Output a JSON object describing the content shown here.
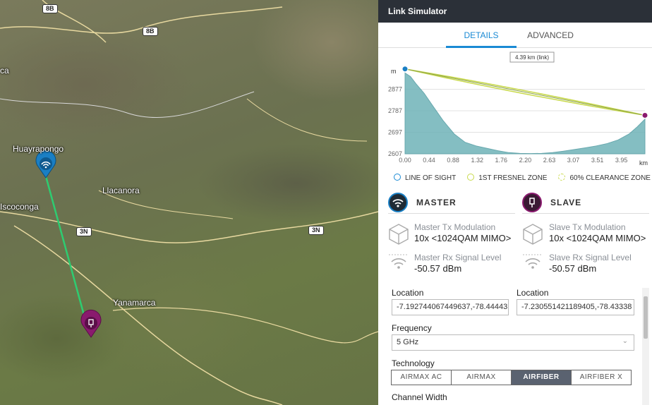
{
  "map": {
    "places": [
      "Huayrapongo",
      "Llacanora",
      "Yanamarca",
      "Iscoconga",
      "ca"
    ],
    "road_shields": [
      "8B",
      "8B",
      "3N",
      "3N"
    ],
    "link_color": "#2ecc71",
    "master_pin_color": "#1a7fc4",
    "slave_pin_color": "#8a1a6e"
  },
  "panel": {
    "title": "Link Simulator",
    "tabs": [
      "DETAILS",
      "ADVANCED"
    ],
    "active_tab": "DETAILS"
  },
  "chart_data": {
    "type": "area",
    "title": "",
    "distance_label": "4.39 km (link)",
    "ylabel": "m",
    "xlabel": "km",
    "yticks": [
      2877,
      2787,
      2697,
      2607
    ],
    "xticks": [
      "0.00",
      "0.44",
      "0.88",
      "1.32",
      "1.76",
      "2.20",
      "2.63",
      "3.07",
      "3.51",
      "3.95"
    ],
    "ylim": [
      2607,
      2967
    ],
    "xlim": [
      0,
      4.39
    ],
    "terrain": {
      "x": [
        0,
        0.1,
        0.2,
        0.35,
        0.5,
        0.7,
        0.9,
        1.1,
        1.3,
        1.5,
        1.7,
        1.9,
        2.1,
        2.3,
        2.5,
        2.7,
        2.9,
        3.1,
        3.3,
        3.5,
        3.7,
        3.9,
        4.1,
        4.25,
        4.39
      ],
      "y": [
        2945,
        2930,
        2900,
        2860,
        2810,
        2745,
        2690,
        2655,
        2640,
        2630,
        2620,
        2612,
        2609,
        2608,
        2609,
        2612,
        2618,
        2625,
        2632,
        2640,
        2650,
        2665,
        2690,
        2720,
        2752
      ]
    },
    "line_of_sight": {
      "x": [
        0,
        4.39
      ],
      "y": [
        2962,
        2768
      ]
    },
    "master_point": {
      "x": 0,
      "y": 2962
    },
    "slave_point": {
      "x": 4.39,
      "y": 2768
    },
    "colors": {
      "terrain": "#6fb3b8",
      "los": "#1a8ad4",
      "fresnel": "#c8d94a",
      "master": "#1a7fc4",
      "slave": "#8a1a6e"
    },
    "legend": [
      "LINE OF SIGHT",
      "1ST FRESNEL ZONE",
      "60% CLEARANCE ZONE"
    ]
  },
  "master": {
    "name": "MASTER",
    "tx_label": "Master Tx Modulation",
    "tx_value": "10x <1024QAM MIMO>",
    "rx_label": "Master Rx Signal Level",
    "rx_value": "-50.57 dBm"
  },
  "slave": {
    "name": "SLAVE",
    "tx_label": "Slave Tx Modulation",
    "tx_value": "10x <1024QAM MIMO>",
    "rx_label": "Slave Rx Signal Level",
    "rx_value": "-50.57 dBm"
  },
  "form": {
    "location_label": "Location",
    "master_location": "-7.192744067449637,-78.44443",
    "slave_location": "-7.230551421189405,-78.43338",
    "frequency_label": "Frequency",
    "frequency_value": "5 GHz",
    "technology_label": "Technology",
    "technology_options": [
      "AIRMAX AC",
      "AIRMAX",
      "AIRFIBER",
      "AIRFIBER X"
    ],
    "technology_selected": "AIRFIBER",
    "channel_width_label": "Channel Width"
  }
}
